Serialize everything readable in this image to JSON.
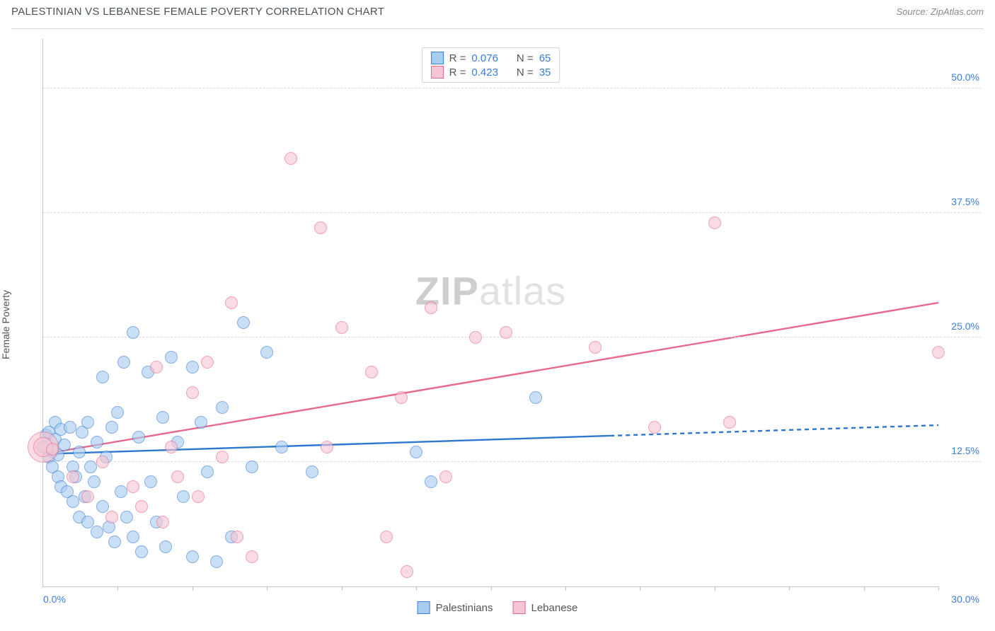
{
  "title": "PALESTINIAN VS LEBANESE FEMALE POVERTY CORRELATION CHART",
  "source": "Source: ZipAtlas.com",
  "watermark": "ZIPatlas",
  "ylabel": "Female Poverty",
  "x_axis": {
    "min": 0,
    "max": 30,
    "origin_label": "0.0%",
    "max_label": "30.0%",
    "ticks_count": 12
  },
  "y_axis": {
    "min": 0,
    "max": 55,
    "gridlines": [
      {
        "v": 12.5,
        "label": "12.5%"
      },
      {
        "v": 25.0,
        "label": "25.0%"
      },
      {
        "v": 37.5,
        "label": "37.5%"
      },
      {
        "v": 50.0,
        "label": "50.0%"
      }
    ]
  },
  "colors": {
    "blue_fill": "#a9cdf0",
    "blue_stroke": "#3b7dd8",
    "pink_fill": "#f6c6d4",
    "pink_stroke": "#e7698d",
    "text_axis": "#3b7dd8",
    "grid": "#d9dcdf",
    "trend_blue": "#2e77d0",
    "trend_pink": "#e7698d"
  },
  "point_radius": 9,
  "point_opacity": 0.62,
  "series": [
    {
      "name": "Palestinians",
      "color_key": "blue",
      "r_label": "R =",
      "r_value": "0.076",
      "n_label": "N =",
      "n_value": "65",
      "trend": {
        "y_at_x0": 13.3,
        "y_at_xmax": 16.2,
        "solid_until_x": 19,
        "dashed": true
      },
      "points": [
        [
          0.0,
          14.0
        ],
        [
          0.1,
          15.2
        ],
        [
          0.2,
          13.0
        ],
        [
          0.2,
          15.5
        ],
        [
          0.3,
          12.0
        ],
        [
          0.3,
          13.6
        ],
        [
          0.4,
          14.8
        ],
        [
          0.4,
          16.5
        ],
        [
          0.5,
          11.0
        ],
        [
          0.5,
          13.2
        ],
        [
          0.6,
          10.0
        ],
        [
          0.6,
          15.8
        ],
        [
          0.7,
          14.2
        ],
        [
          0.8,
          9.5
        ],
        [
          0.9,
          16.0
        ],
        [
          1.0,
          12.0
        ],
        [
          1.0,
          8.5
        ],
        [
          1.1,
          11.0
        ],
        [
          1.2,
          13.5
        ],
        [
          1.2,
          7.0
        ],
        [
          1.3,
          15.5
        ],
        [
          1.4,
          9.0
        ],
        [
          1.5,
          16.5
        ],
        [
          1.5,
          6.5
        ],
        [
          1.6,
          12.0
        ],
        [
          1.7,
          10.5
        ],
        [
          1.8,
          14.5
        ],
        [
          1.8,
          5.5
        ],
        [
          2.0,
          21.0
        ],
        [
          2.0,
          8.0
        ],
        [
          2.1,
          13.0
        ],
        [
          2.2,
          6.0
        ],
        [
          2.3,
          16.0
        ],
        [
          2.4,
          4.5
        ],
        [
          2.5,
          17.5
        ],
        [
          2.6,
          9.5
        ],
        [
          2.7,
          22.5
        ],
        [
          2.8,
          7.0
        ],
        [
          3.0,
          25.5
        ],
        [
          3.0,
          5.0
        ],
        [
          3.2,
          15.0
        ],
        [
          3.3,
          3.5
        ],
        [
          3.5,
          21.5
        ],
        [
          3.6,
          10.5
        ],
        [
          3.8,
          6.5
        ],
        [
          4.0,
          17.0
        ],
        [
          4.1,
          4.0
        ],
        [
          4.3,
          23.0
        ],
        [
          4.5,
          14.5
        ],
        [
          4.7,
          9.0
        ],
        [
          5.0,
          22.0
        ],
        [
          5.0,
          3.0
        ],
        [
          5.3,
          16.5
        ],
        [
          5.5,
          11.5
        ],
        [
          5.8,
          2.5
        ],
        [
          6.0,
          18.0
        ],
        [
          6.3,
          5.0
        ],
        [
          6.7,
          26.5
        ],
        [
          7.0,
          12.0
        ],
        [
          7.5,
          23.5
        ],
        [
          8.0,
          14.0
        ],
        [
          9.0,
          11.5
        ],
        [
          12.5,
          13.5
        ],
        [
          13.0,
          10.5
        ],
        [
          16.5,
          19.0
        ]
      ]
    },
    {
      "name": "Lebanese",
      "color_key": "pink",
      "r_label": "R =",
      "r_value": "0.423",
      "n_label": "N =",
      "n_value": "35",
      "trend": {
        "y_at_x0": 13.3,
        "y_at_xmax": 28.5,
        "solid_until_x": 30,
        "dashed": false
      },
      "points": [
        [
          0.0,
          14.0,
          22
        ],
        [
          0.0,
          14.0,
          14
        ],
        [
          0.3,
          13.8
        ],
        [
          1.0,
          11.0
        ],
        [
          1.5,
          9.0
        ],
        [
          2.0,
          12.5
        ],
        [
          2.3,
          7.0
        ],
        [
          3.0,
          10.0
        ],
        [
          3.3,
          8.0
        ],
        [
          3.8,
          22.0
        ],
        [
          4.0,
          6.5
        ],
        [
          4.3,
          14.0
        ],
        [
          4.5,
          11.0
        ],
        [
          5.0,
          19.5
        ],
        [
          5.2,
          9.0
        ],
        [
          5.5,
          22.5
        ],
        [
          6.0,
          13.0
        ],
        [
          6.3,
          28.5
        ],
        [
          6.5,
          5.0
        ],
        [
          7.0,
          3.0
        ],
        [
          8.3,
          43.0
        ],
        [
          9.3,
          36.0
        ],
        [
          9.5,
          14.0
        ],
        [
          10.0,
          26.0
        ],
        [
          11.0,
          21.5
        ],
        [
          11.5,
          5.0
        ],
        [
          12.0,
          19.0
        ],
        [
          12.2,
          1.5
        ],
        [
          13.0,
          28.0
        ],
        [
          13.5,
          11.0
        ],
        [
          14.5,
          25.0
        ],
        [
          15.5,
          25.5
        ],
        [
          18.5,
          24.0
        ],
        [
          20.5,
          16.0
        ],
        [
          22.5,
          36.5
        ],
        [
          23.0,
          16.5
        ],
        [
          30.0,
          23.5
        ]
      ]
    }
  ],
  "legend_bottom": [
    {
      "label": "Palestinians",
      "color_key": "blue"
    },
    {
      "label": "Lebanese",
      "color_key": "pink"
    }
  ]
}
